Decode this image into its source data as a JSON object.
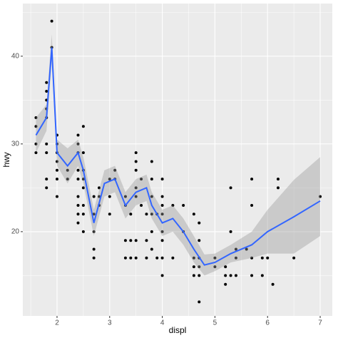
{
  "chart_data": {
    "type": "scatter",
    "x_label": "displ",
    "y_label": "hwy",
    "xlim": [
      1.35,
      7.23
    ],
    "ylim": [
      10.4,
      46.0
    ],
    "xticks": [
      2,
      3,
      4,
      5,
      6,
      7
    ],
    "yticks": [
      20,
      30,
      40
    ],
    "grid": true,
    "point_color": "#000000",
    "points": {
      "x": [
        1.6,
        1.6,
        1.6,
        1.6,
        1.8,
        1.8,
        1.8,
        1.8,
        1.8,
        1.8,
        1.8,
        1.8,
        1.8,
        1.9,
        1.9,
        2.0,
        2.0,
        2.0,
        2.0,
        2.0,
        2.0,
        2.0,
        2.2,
        2.2,
        2.4,
        2.4,
        2.4,
        2.4,
        2.4,
        2.4,
        2.4,
        2.4,
        2.4,
        2.5,
        2.5,
        2.5,
        2.5,
        2.5,
        2.5,
        2.5,
        2.5,
        2.7,
        2.7,
        2.7,
        2.7,
        2.7,
        2.8,
        2.8,
        2.8,
        3.0,
        3.0,
        3.0,
        3.1,
        3.1,
        3.3,
        3.3,
        3.3,
        3.3,
        3.4,
        3.4,
        3.4,
        3.5,
        3.5,
        3.5,
        3.5,
        3.5,
        3.5,
        3.5,
        3.6,
        3.6,
        3.7,
        3.7,
        3.7,
        3.8,
        3.8,
        3.8,
        3.8,
        3.8,
        3.8,
        3.9,
        3.9,
        4.0,
        4.0,
        4.0,
        4.0,
        4.0,
        4.0,
        4.0,
        4.0,
        4.2,
        4.2,
        4.4,
        4.4,
        4.6,
        4.6,
        4.6,
        4.6,
        4.7,
        4.7,
        4.7,
        4.7,
        4.7,
        4.7,
        5.0,
        5.0,
        5.2,
        5.2,
        5.2,
        5.3,
        5.3,
        5.3,
        5.4,
        5.4,
        5.4,
        5.6,
        5.7,
        5.7,
        5.7,
        5.7,
        5.9,
        5.9,
        6.0,
        6.1,
        6.2,
        6.2,
        6.5,
        7.0
      ],
      "y": [
        29,
        30,
        32,
        33,
        25,
        26,
        29,
        30,
        33,
        34,
        35,
        36,
        37,
        41,
        44,
        24,
        26,
        27,
        28,
        29,
        30,
        31,
        26,
        27,
        21,
        22,
        23,
        24,
        26,
        27,
        29,
        30,
        31,
        20,
        22,
        23,
        25,
        26,
        27,
        29,
        32,
        17,
        18,
        20,
        22,
        24,
        23,
        24,
        25,
        22,
        24,
        26,
        26,
        27,
        17,
        19,
        23,
        24,
        17,
        19,
        22,
        17,
        19,
        24,
        25,
        27,
        28,
        29,
        23,
        26,
        17,
        19,
        22,
        18,
        20,
        22,
        24,
        26,
        28,
        17,
        22,
        15,
        17,
        19,
        20,
        22,
        23,
        24,
        26,
        17,
        23,
        20,
        23,
        15,
        16,
        17,
        22,
        12,
        15,
        16,
        17,
        19,
        21,
        16,
        17,
        14,
        15,
        16,
        15,
        20,
        25,
        15,
        17,
        18,
        18,
        15,
        17,
        23,
        26,
        15,
        17,
        17,
        14,
        25,
        26,
        17,
        24
      ]
    },
    "smooth": {
      "color": "#3366ff",
      "band_color": "#999999",
      "x": [
        1.6,
        1.8,
        1.9,
        2.0,
        2.2,
        2.4,
        2.5,
        2.7,
        2.9,
        3.1,
        3.3,
        3.5,
        3.7,
        3.8,
        4.0,
        4.2,
        4.4,
        4.6,
        4.8,
        5.0,
        5.3,
        5.7,
        6.0,
        6.5,
        7.0
      ],
      "y": [
        31,
        33,
        41,
        29,
        27.5,
        29,
        27,
        21,
        25.5,
        26,
        23,
        24.5,
        25,
        23,
        21,
        21.5,
        20,
        18,
        16.2,
        16.5,
        17.5,
        18.5,
        20,
        21.7,
        23.5
      ],
      "lower": [
        29,
        31.5,
        39.5,
        27.5,
        25.5,
        27.5,
        25.5,
        19.5,
        24,
        24.5,
        21.5,
        23,
        23.5,
        21.5,
        19.5,
        20,
        18.5,
        16.5,
        15,
        15.5,
        16.5,
        17,
        17.5,
        17.5,
        19.5
      ],
      "upper": [
        33,
        34.5,
        42.5,
        30.5,
        29.5,
        30.5,
        28.5,
        22.5,
        27,
        27.5,
        24.5,
        26,
        26.5,
        24.5,
        22.5,
        23,
        21.5,
        19.5,
        17.4,
        17.5,
        18.5,
        20,
        22.5,
        25.9,
        28.5
      ]
    }
  }
}
